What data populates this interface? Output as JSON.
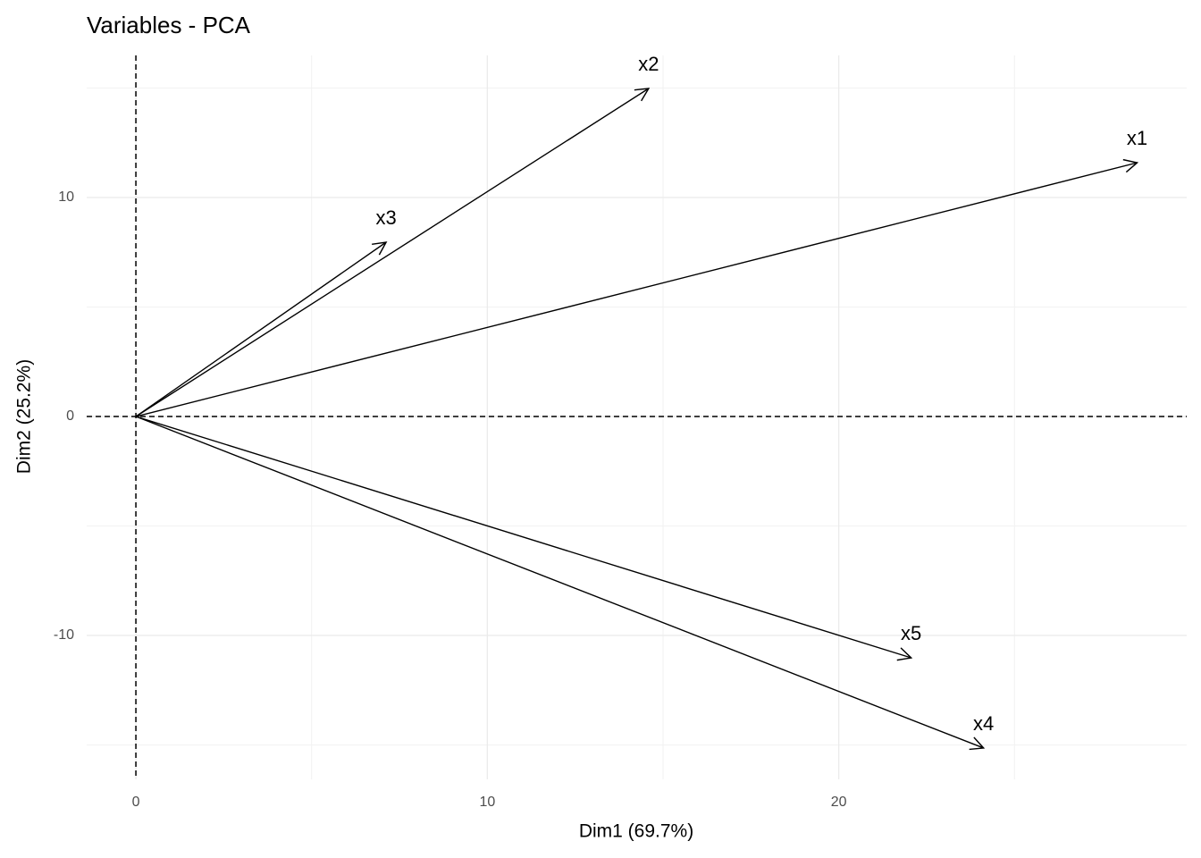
{
  "chart_data": {
    "type": "pca_variables",
    "title": "Variables - PCA",
    "xlabel": "Dim1 (69.7%)",
    "ylabel": "Dim2 (25.2%)",
    "xlim": [
      -1.4,
      29.9
    ],
    "ylim": [
      -16.57,
      16.49
    ],
    "xticks": [
      0,
      10,
      20
    ],
    "yticks": [
      -10,
      0,
      10
    ],
    "xminor": [
      5,
      15,
      25
    ],
    "yminor": [
      -15,
      -5,
      5,
      15
    ],
    "grid": true,
    "hline": 0,
    "vline": 0,
    "color": "#000000",
    "variables": [
      {
        "name": "x1",
        "x": 28.49,
        "y": 11.59
      },
      {
        "name": "x2",
        "x": 14.59,
        "y": 14.98
      },
      {
        "name": "x3",
        "x": 7.12,
        "y": 7.96
      },
      {
        "name": "x4",
        "x": 24.12,
        "y": -15.14
      },
      {
        "name": "x5",
        "x": 22.06,
        "y": -11.02
      }
    ]
  }
}
